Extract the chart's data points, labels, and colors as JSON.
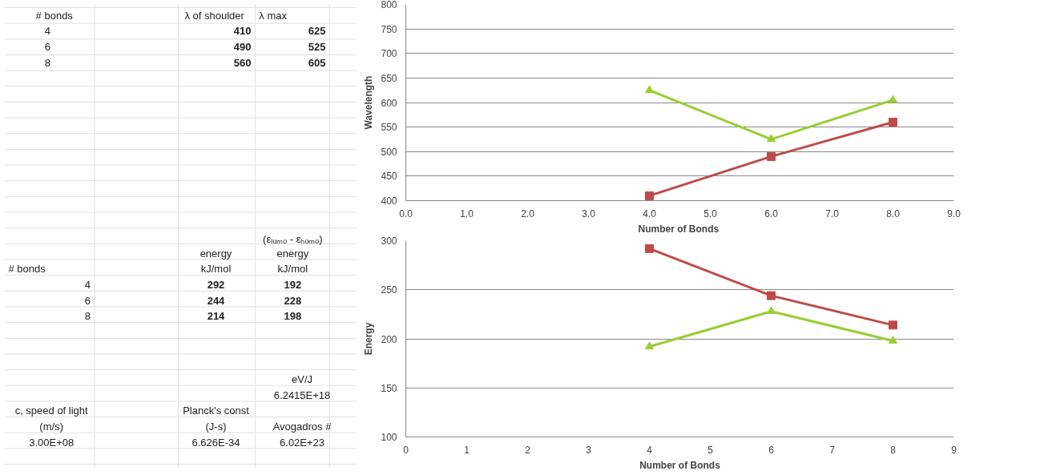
{
  "chart_data": [
    {
      "type": "other",
      "annotations": [
        "# bonds",
        "λ of shoulder",
        "λ max",
        "4",
        "410",
        "625",
        "6",
        "490",
        "525",
        "8",
        "560",
        "605",
        "(εₗᵤₘₒ - εₕₒₘₒ)",
        "energy",
        "energy",
        "kJ/mol",
        "kJ/mol",
        "# bonds",
        "4",
        "292",
        "192",
        "6",
        "244",
        "228",
        "8",
        "214",
        "198",
        "c, speed of light",
        "(m/s)",
        "3.00E+08",
        "Planck's const",
        "(J-s)",
        "6.626E-34",
        "eV/J",
        "6.2415E+18",
        "Avogadros #",
        "6.02E+23"
      ]
    },
    {
      "type": "line",
      "xlabel": "Number of  Bonds",
      "ylabel": "Wavelength",
      "x": [
        4,
        6,
        8
      ],
      "xlim": [
        0,
        9
      ],
      "xticks": [
        {
          "value": 0,
          "label": "0.0"
        },
        {
          "value": 1,
          "label": "1.0"
        },
        {
          "value": 2,
          "label": "2.0"
        },
        {
          "value": 3,
          "label": "3.0"
        },
        {
          "value": 4,
          "label": "4.0"
        },
        {
          "value": 5,
          "label": "5.0"
        },
        {
          "value": 6,
          "label": "6.0"
        },
        {
          "value": 7,
          "label": "7.0"
        },
        {
          "value": 8,
          "label": "8.0"
        },
        {
          "value": 9,
          "label": "9.0"
        }
      ],
      "ylim": [
        400,
        800
      ],
      "yticks": [
        400,
        450,
        500,
        550,
        600,
        650,
        700,
        750,
        800
      ],
      "grid": "y",
      "series": [
        {
          "color": "#be4b48",
          "marker": "square",
          "values": [
            410,
            490,
            560
          ]
        },
        {
          "color": "#9acd32",
          "marker": "triangle",
          "values": [
            625,
            525,
            605
          ]
        }
      ]
    },
    {
      "type": "line",
      "xlabel": "Number of Bonds",
      "ylabel": "Energy",
      "x": [
        4,
        6,
        8
      ],
      "xlim": [
        0,
        9
      ],
      "xticks": [
        0,
        1,
        2,
        3,
        4,
        5,
        6,
        7,
        8,
        9
      ],
      "ylim": [
        100,
        300
      ],
      "yticks": [
        100,
        150,
        200,
        250,
        300
      ],
      "grid": "y",
      "series": [
        {
          "color": "#be4b48",
          "marker": "square",
          "values": [
            292,
            244,
            214
          ]
        },
        {
          "color": "#9acd32",
          "marker": "triangle",
          "values": [
            192,
            228,
            198
          ]
        }
      ]
    }
  ]
}
